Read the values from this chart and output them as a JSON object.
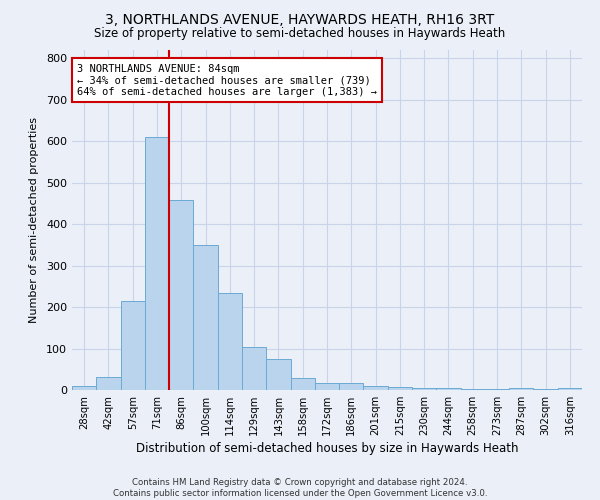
{
  "title": "3, NORTHLANDS AVENUE, HAYWARDS HEATH, RH16 3RT",
  "subtitle": "Size of property relative to semi-detached houses in Haywards Heath",
  "xlabel": "Distribution of semi-detached houses by size in Haywards Heath",
  "ylabel": "Number of semi-detached properties",
  "footer1": "Contains HM Land Registry data © Crown copyright and database right 2024.",
  "footer2": "Contains public sector information licensed under the Open Government Licence v3.0.",
  "categories": [
    "28sqm",
    "42sqm",
    "57sqm",
    "71sqm",
    "86sqm",
    "100sqm",
    "114sqm",
    "129sqm",
    "143sqm",
    "158sqm",
    "172sqm",
    "186sqm",
    "201sqm",
    "215sqm",
    "230sqm",
    "244sqm",
    "258sqm",
    "273sqm",
    "287sqm",
    "302sqm",
    "316sqm"
  ],
  "values": [
    10,
    32,
    215,
    610,
    458,
    350,
    233,
    103,
    75,
    30,
    18,
    18,
    10,
    8,
    5,
    4,
    3,
    2,
    5,
    2,
    4
  ],
  "bar_color": "#bad4ed",
  "bar_edge_color": "#6aaad4",
  "annotation_text": "3 NORTHLANDS AVENUE: 84sqm\n← 34% of semi-detached houses are smaller (739)\n64% of semi-detached houses are larger (1,383) →",
  "annotation_box_color": "#ffffff",
  "annotation_box_edge": "#cc0000",
  "vline_color": "#cc0000",
  "vline_x": 3.5,
  "ylim": [
    0,
    820
  ],
  "yticks": [
    0,
    100,
    200,
    300,
    400,
    500,
    600,
    700,
    800
  ],
  "grid_color": "#c8d4e8",
  "bg_color": "#eaeff8",
  "title_fontsize": 10,
  "subtitle_fontsize": 8.5
}
